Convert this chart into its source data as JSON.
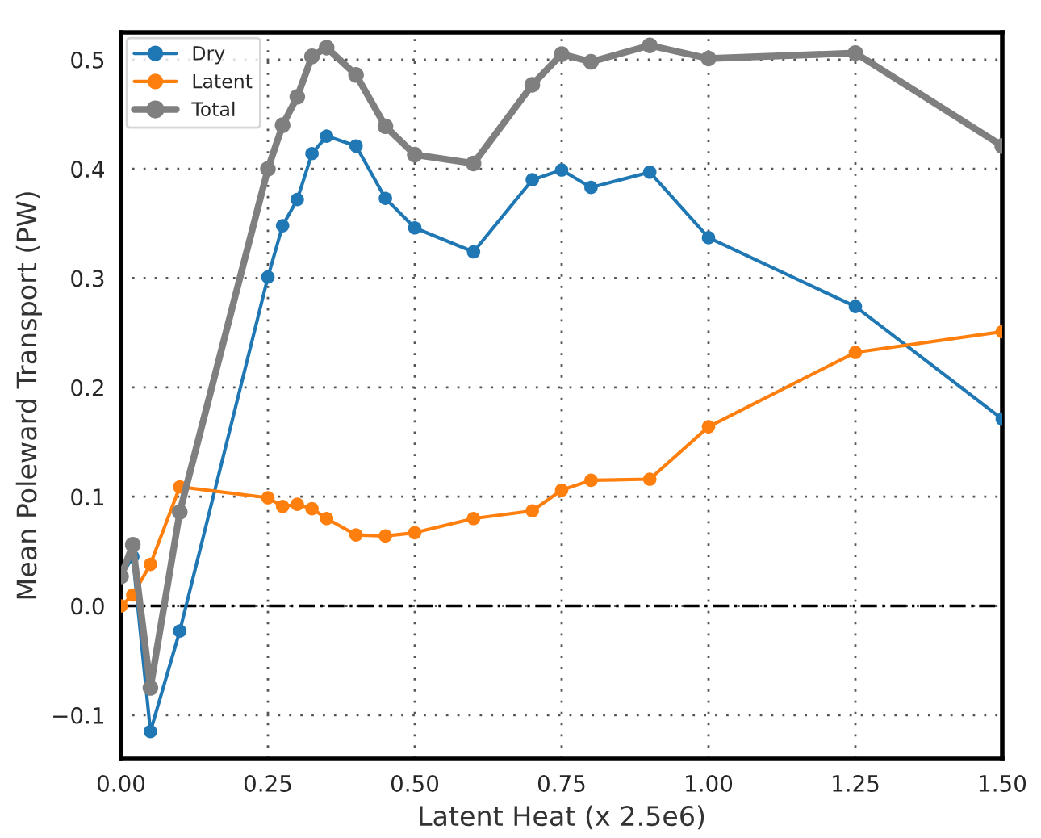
{
  "chart_data": {
    "type": "line",
    "xlabel": "Latent Heat (x 2.5e6)",
    "ylabel": "Mean Poleward Transport (PW)",
    "x": [
      0,
      0.02,
      0.05,
      0.1,
      0.25,
      0.275,
      0.3,
      0.325,
      0.35,
      0.4,
      0.45,
      0.5,
      0.6,
      0.7,
      0.75,
      0.8,
      0.9,
      1.0,
      1.25,
      1.5
    ],
    "series": [
      {
        "name": "Dry",
        "color": "#1f77b4",
        "values": [
          0.027,
          0.045,
          -0.115,
          -0.023,
          0.301,
          0.348,
          0.372,
          0.414,
          0.43,
          0.421,
          0.373,
          0.346,
          0.324,
          0.39,
          0.399,
          0.383,
          0.397,
          0.337,
          0.274,
          0.171
        ]
      },
      {
        "name": "Latent",
        "color": "#ff7f0e",
        "values": [
          0.0,
          0.01,
          0.038,
          0.109,
          0.099,
          0.091,
          0.093,
          0.089,
          0.08,
          0.065,
          0.064,
          0.067,
          0.08,
          0.087,
          0.106,
          0.115,
          0.116,
          0.164,
          0.232,
          0.251
        ]
      },
      {
        "name": "Total",
        "color": "#7f7f7f",
        "values": [
          0.027,
          0.056,
          -0.075,
          0.086,
          0.4,
          0.44,
          0.466,
          0.503,
          0.511,
          0.486,
          0.439,
          0.413,
          0.405,
          0.477,
          0.505,
          0.498,
          0.513,
          0.501,
          0.506,
          0.421
        ]
      }
    ],
    "xlim": [
      0,
      1.5
    ],
    "ylim": [
      -0.14,
      0.525
    ],
    "xticks": [
      {
        "value": 0,
        "label": "0.00"
      },
      0.25,
      {
        "value": 0.5,
        "label": "0.50"
      },
      0.75,
      {
        "value": 1.0,
        "label": "1.00"
      },
      1.25,
      {
        "value": 1.5,
        "label": "1.50"
      }
    ],
    "yticks": [
      {
        "value": -0.1,
        "label": "−0.1"
      },
      {
        "value": 0,
        "label": "0.0"
      },
      0.1,
      0.2,
      0.3,
      0.4,
      0.5
    ],
    "ref_lines": [
      {
        "axis": "y",
        "value": 0,
        "color": "#000000",
        "line_style": "dashed"
      }
    ],
    "grid": true,
    "legend": "top left",
    "marker": "circle",
    "line_style": "solid"
  }
}
